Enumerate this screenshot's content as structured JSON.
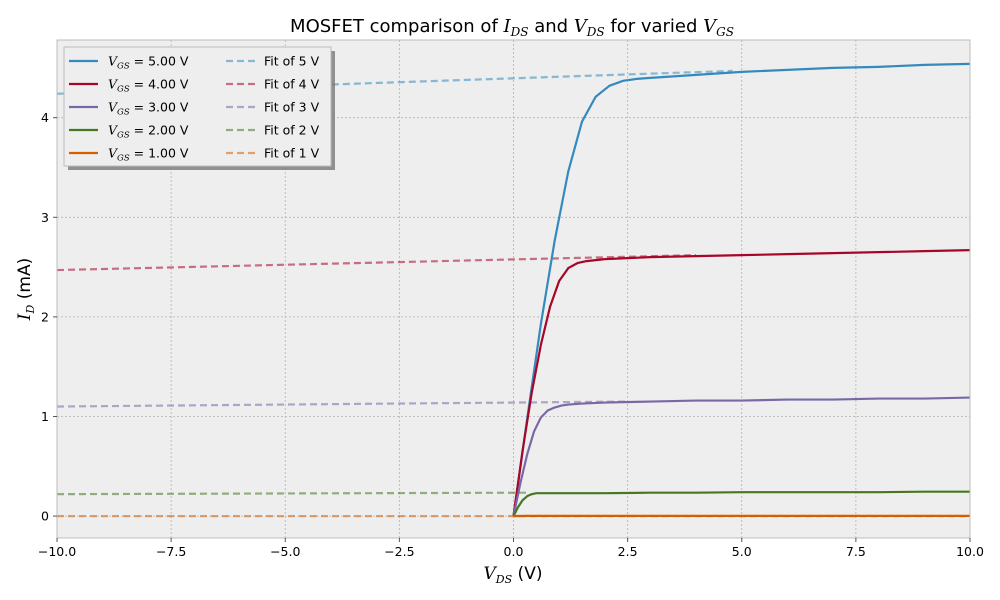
{
  "chart_data": {
    "type": "line",
    "title": {
      "prefix": "MOSFET comparison of ",
      "var1": "I",
      "var1_sub": "DS",
      "mid": " and ",
      "var2": "V",
      "var2_sub": "DS",
      "mid2": " for varied ",
      "var3": "V",
      "var3_sub": "GS"
    },
    "xlabel": {
      "var": "V",
      "sub": "DS",
      "unit": " (V)"
    },
    "ylabel": {
      "var": "I",
      "sub": "D",
      "unit": " (mA)"
    },
    "xlim": [
      -10,
      10
    ],
    "ylim": [
      -0.22,
      4.78
    ],
    "xticks": [
      -10,
      -7.5,
      -5,
      -2.5,
      0,
      2.5,
      5,
      7.5,
      10
    ],
    "xtick_labels": [
      "−10.0",
      "−7.5",
      "−5.0",
      "−2.5",
      "0.0",
      "2.5",
      "5.0",
      "7.5",
      "10.0"
    ],
    "yticks": [
      0,
      1,
      2,
      3,
      4
    ],
    "ytick_labels": [
      "0",
      "1",
      "2",
      "3",
      "4"
    ],
    "grid": true,
    "legend_placement": "top-left",
    "series": [
      {
        "name": "= 5.00 V",
        "vgs": 5,
        "color": "#348abd",
        "Isat": 4.3,
        "lambda": 0.0056,
        "x": [
          0,
          0.3,
          0.6,
          0.9,
          1.2,
          1.5,
          1.8,
          2.1,
          2.4,
          2.7,
          3.0,
          4.0,
          5.0,
          6.0,
          7.0,
          8.0,
          9.0,
          10.0
        ],
        "y": [
          0,
          0.98,
          1.93,
          2.76,
          3.46,
          3.96,
          4.21,
          4.32,
          4.37,
          4.39,
          4.4,
          4.43,
          4.46,
          4.48,
          4.5,
          4.51,
          4.53,
          4.54
        ]
      },
      {
        "name": "= 4.00 V",
        "vgs": 4,
        "color": "#a60628",
        "Isat": 2.55,
        "lambda": 0.0049,
        "x": [
          0,
          0.2,
          0.4,
          0.6,
          0.8,
          1.0,
          1.2,
          1.4,
          1.6,
          1.8,
          2.0,
          2.5,
          3.0,
          4.0,
          5.0,
          6.0,
          7.0,
          8.0,
          9.0,
          10.0
        ],
        "y": [
          0,
          0.66,
          1.24,
          1.72,
          2.1,
          2.36,
          2.49,
          2.54,
          2.56,
          2.57,
          2.58,
          2.59,
          2.6,
          2.61,
          2.62,
          2.63,
          2.64,
          2.65,
          2.66,
          2.67
        ]
      },
      {
        "name": "= 3.00 V",
        "vgs": 3,
        "color": "#7a68a6",
        "Isat": 1.14,
        "lambda": 0.0044,
        "x": [
          0,
          0.15,
          0.3,
          0.45,
          0.6,
          0.75,
          0.9,
          1.05,
          1.2,
          1.5,
          2.0,
          3.0,
          4.0,
          5.0,
          6.0,
          7.0,
          8.0,
          9.0,
          10.0
        ],
        "y": [
          0,
          0.33,
          0.62,
          0.85,
          0.99,
          1.06,
          1.09,
          1.11,
          1.12,
          1.13,
          1.14,
          1.15,
          1.16,
          1.16,
          1.17,
          1.17,
          1.18,
          1.18,
          1.19
        ]
      },
      {
        "name": "= 2.00 V",
        "vgs": 2,
        "color": "#467821",
        "Isat": 0.23,
        "lambda": 0.0043,
        "x": [
          0,
          0.1,
          0.2,
          0.3,
          0.4,
          0.5,
          0.7,
          1.0,
          2.0,
          3.0,
          4.0,
          5.0,
          6.0,
          7.0,
          8.0,
          9.0,
          10.0
        ],
        "y": [
          0,
          0.09,
          0.16,
          0.2,
          0.22,
          0.23,
          0.23,
          0.23,
          0.23,
          0.235,
          0.235,
          0.24,
          0.24,
          0.24,
          0.24,
          0.245,
          0.245
        ]
      },
      {
        "name": "= 1.00 V",
        "vgs": 1,
        "color": "#d55e00",
        "Isat": 0.002,
        "lambda": 0.004,
        "x": [
          0,
          0.1,
          0.3,
          1.0,
          3.0,
          5.0,
          7.0,
          10.0
        ],
        "y": [
          0,
          0.001,
          0.002,
          0.002,
          0.002,
          0.002,
          0.002,
          0.002
        ]
      }
    ],
    "fits": [
      {
        "name": "Fit of 5 V",
        "color": "#348abd",
        "x": [
          -10,
          4.8
        ],
        "y": [
          4.24,
          4.47
        ]
      },
      {
        "name": "Fit of 4 V",
        "color": "#a60628",
        "x": [
          -10,
          4.0
        ],
        "y": [
          2.47,
          2.62
        ]
      },
      {
        "name": "Fit of 3 V",
        "color": "#7a68a6",
        "x": [
          -10,
          2.5
        ],
        "y": [
          1.1,
          1.15
        ]
      },
      {
        "name": "Fit of 2 V",
        "color": "#467821",
        "x": [
          -10,
          0.3
        ],
        "y": [
          0.22,
          0.235
        ]
      },
      {
        "name": "Fit of 1 V",
        "color": "#d55e00",
        "x": [
          -10,
          10
        ],
        "y": [
          0.0,
          0.0
        ]
      }
    ],
    "legend_label_prefix": {
      "var": "V",
      "sub": "GS"
    }
  },
  "colors": {
    "plot_background": "#eeeeee",
    "grid": "#b2b2b2",
    "frame": "#bcbcbc"
  }
}
